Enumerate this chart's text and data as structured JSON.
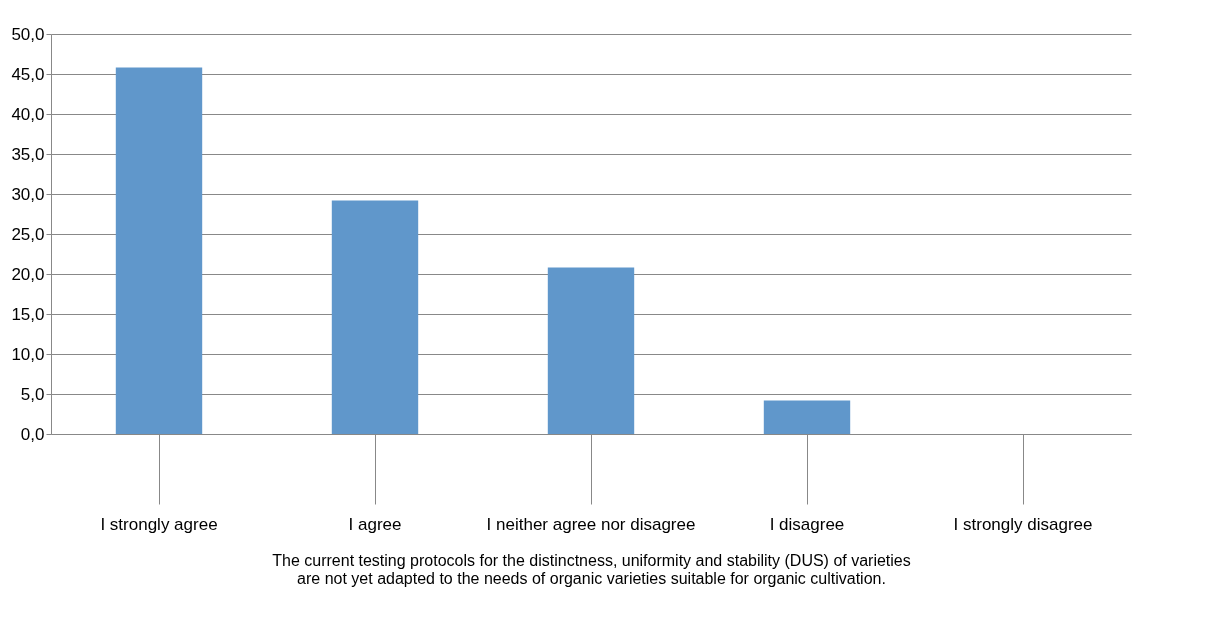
{
  "chart_data": {
    "type": "bar",
    "xlabel": "The current testing protocols for the distinctness, uniformity and stability (DUS) of varieties are not yet adapted to the needs of organic varieties suitable for organic cultivation.",
    "categories": [
      "I strongly agree",
      "I agree",
      "I neither agree nor disagree",
      "I disagree",
      "I strongly disagree"
    ],
    "values": [
      45.8,
      29.2,
      20.8,
      4.2,
      0
    ],
    "color": "#6097cb",
    "ylim": [
      0,
      50
    ],
    "yticks": [
      {
        "value": 0,
        "label": "0,0"
      },
      {
        "value": 5,
        "label": "5,0"
      },
      {
        "value": 10,
        "label": "10,0"
      },
      {
        "value": 15,
        "label": "15,0"
      },
      {
        "value": 20,
        "label": "20,0"
      },
      {
        "value": 25,
        "label": "25,0"
      },
      {
        "value": 30,
        "label": "30,0"
      },
      {
        "value": 35,
        "label": "35,0"
      },
      {
        "value": 40,
        "label": "40,0"
      },
      {
        "value": 45,
        "label": "45,0"
      },
      {
        "value": 50,
        "label": "50,0"
      }
    ],
    "grid": "y"
  }
}
